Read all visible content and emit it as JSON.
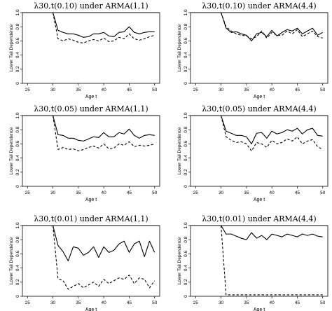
{
  "chart_data": [
    {
      "type": "line",
      "title": "λ30,t(0.10) under ARMA(1,1)",
      "xlabel": "Age t",
      "ylabel": "Lower Tail Dependence",
      "xlim": [
        24,
        51
      ],
      "ylim": [
        0,
        1
      ],
      "xticks": [
        "25",
        "30",
        "35",
        "40",
        "45",
        "50"
      ],
      "yticks": [
        "0",
        "0.2",
        "0.4",
        "0.6",
        "0.8",
        "1.0"
      ],
      "grid": false,
      "legend": "none",
      "reference_line": 1.0,
      "x": [
        30,
        31,
        32,
        33,
        34,
        35,
        36,
        37,
        38,
        39,
        40,
        41,
        42,
        43,
        44,
        45,
        46,
        47,
        48,
        49,
        50
      ],
      "series": [
        {
          "style": "solid",
          "values": [
            1.0,
            0.75,
            0.72,
            0.7,
            0.7,
            0.68,
            0.65,
            0.66,
            0.7,
            0.7,
            0.72,
            0.67,
            0.66,
            0.72,
            0.73,
            0.8,
            0.72,
            0.7,
            0.72,
            0.73,
            0.73
          ]
        },
        {
          "style": "dashed",
          "values": [
            1.0,
            0.63,
            0.6,
            0.63,
            0.61,
            0.58,
            0.57,
            0.6,
            0.62,
            0.6,
            0.64,
            0.59,
            0.6,
            0.65,
            0.63,
            0.7,
            0.63,
            0.61,
            0.63,
            0.66,
            0.68
          ]
        }
      ]
    },
    {
      "type": "line",
      "title": "λ30,t(0.10) under ARMA(4,4)",
      "xlabel": "Age t",
      "ylabel": "Lower Tail Dependence",
      "xlim": [
        24,
        51
      ],
      "ylim": [
        0,
        1
      ],
      "xticks": [
        "25",
        "30",
        "35",
        "40",
        "45",
        "50"
      ],
      "yticks": [
        "0",
        "0.2",
        "0.4",
        "0.6",
        "0.8",
        "1.0"
      ],
      "grid": false,
      "legend": "none",
      "reference_line": 1.0,
      "x": [
        30,
        31,
        32,
        33,
        34,
        35,
        36,
        37,
        38,
        39,
        40,
        41,
        42,
        43,
        44,
        45,
        46,
        47,
        48,
        49,
        50
      ],
      "series": [
        {
          "style": "solid",
          "values": [
            1.0,
            0.78,
            0.72,
            0.73,
            0.7,
            0.68,
            0.6,
            0.7,
            0.72,
            0.66,
            0.75,
            0.67,
            0.72,
            0.76,
            0.74,
            0.78,
            0.7,
            0.74,
            0.78,
            0.68,
            0.72
          ]
        },
        {
          "style": "dashed",
          "values": [
            1.0,
            0.8,
            0.74,
            0.7,
            0.68,
            0.67,
            0.63,
            0.66,
            0.74,
            0.64,
            0.72,
            0.68,
            0.68,
            0.74,
            0.7,
            0.76,
            0.66,
            0.7,
            0.74,
            0.66,
            0.64
          ]
        }
      ]
    },
    {
      "type": "line",
      "title": "λ30,t(0.05) under ARMA(1,1)",
      "xlabel": "Age t",
      "ylabel": "Lower Tail Dependence",
      "xlim": [
        24,
        51
      ],
      "ylim": [
        0,
        1
      ],
      "xticks": [
        "25",
        "30",
        "35",
        "40",
        "45",
        "50"
      ],
      "yticks": [
        "0",
        "0.2",
        "0.4",
        "0.6",
        "0.8",
        "1.0"
      ],
      "grid": false,
      "legend": "none",
      "reference_line": 1.0,
      "x": [
        30,
        31,
        32,
        33,
        34,
        35,
        36,
        37,
        38,
        39,
        40,
        41,
        42,
        43,
        44,
        45,
        46,
        47,
        48,
        49,
        50
      ],
      "series": [
        {
          "style": "solid",
          "values": [
            1.0,
            0.73,
            0.72,
            0.68,
            0.68,
            0.65,
            0.64,
            0.67,
            0.7,
            0.69,
            0.76,
            0.7,
            0.7,
            0.76,
            0.74,
            0.81,
            0.72,
            0.68,
            0.72,
            0.73,
            0.72
          ]
        },
        {
          "style": "dashed",
          "values": [
            1.0,
            0.52,
            0.55,
            0.52,
            0.53,
            0.5,
            0.52,
            0.55,
            0.57,
            0.54,
            0.6,
            0.53,
            0.54,
            0.6,
            0.58,
            0.63,
            0.56,
            0.58,
            0.57,
            0.58,
            0.6
          ]
        }
      ]
    },
    {
      "type": "line",
      "title": "λ30,t(0.05) under ARMA(4,4)",
      "xlabel": "Age t",
      "ylabel": "Lower Tail Dependence",
      "xlim": [
        24,
        51
      ],
      "ylim": [
        0,
        1
      ],
      "xticks": [
        "25",
        "30",
        "35",
        "40",
        "45",
        "50"
      ],
      "yticks": [
        "0",
        "0.2",
        "0.4",
        "0.6",
        "0.8",
        "1.0"
      ],
      "grid": false,
      "legend": "none",
      "reference_line": 1.0,
      "x": [
        30,
        31,
        32,
        33,
        34,
        35,
        36,
        37,
        38,
        39,
        40,
        41,
        42,
        43,
        44,
        45,
        46,
        47,
        48,
        49,
        50
      ],
      "series": [
        {
          "style": "solid",
          "values": [
            1.0,
            0.78,
            0.75,
            0.72,
            0.72,
            0.7,
            0.6,
            0.75,
            0.76,
            0.68,
            0.78,
            0.74,
            0.76,
            0.8,
            0.78,
            0.82,
            0.74,
            0.8,
            0.82,
            0.72,
            0.71
          ]
        },
        {
          "style": "dashed",
          "values": [
            1.0,
            0.7,
            0.65,
            0.62,
            0.63,
            0.6,
            0.5,
            0.62,
            0.6,
            0.55,
            0.65,
            0.6,
            0.62,
            0.67,
            0.64,
            0.7,
            0.6,
            0.64,
            0.66,
            0.56,
            0.52
          ]
        }
      ]
    },
    {
      "type": "line",
      "title": "λ30,t(0.01) under ARMA(1,1)",
      "xlabel": "Age t",
      "ylabel": "Lower Tail Dependence",
      "xlim": [
        24,
        51
      ],
      "ylim": [
        0,
        1
      ],
      "xticks": [
        "25",
        "30",
        "35",
        "40",
        "45",
        "50"
      ],
      "yticks": [
        "0",
        "0.2",
        "0.4",
        "0.6",
        "0.8",
        "1.0"
      ],
      "grid": false,
      "legend": "none",
      "reference_line": 1.0,
      "x": [
        30,
        31,
        32,
        33,
        34,
        35,
        36,
        37,
        38,
        39,
        40,
        41,
        42,
        43,
        44,
        45,
        46,
        47,
        48,
        49,
        50
      ],
      "series": [
        {
          "style": "solid",
          "values": [
            1.0,
            0.72,
            0.63,
            0.5,
            0.7,
            0.68,
            0.58,
            0.62,
            0.7,
            0.55,
            0.7,
            0.62,
            0.65,
            0.74,
            0.78,
            0.62,
            0.74,
            0.78,
            0.56,
            0.78,
            0.62
          ]
        },
        {
          "style": "dashed",
          "values": [
            1.0,
            0.25,
            0.22,
            0.1,
            0.14,
            0.18,
            0.12,
            0.16,
            0.2,
            0.14,
            0.24,
            0.18,
            0.22,
            0.26,
            0.24,
            0.3,
            0.18,
            0.26,
            0.24,
            0.12,
            0.22
          ]
        }
      ]
    },
    {
      "type": "line",
      "title": "λ30,t(0.01) under ARMA(4,4)",
      "xlabel": "Age t",
      "ylabel": "Lower Tail Dependence",
      "xlim": [
        24,
        51
      ],
      "ylim": [
        0,
        1
      ],
      "xticks": [
        "25",
        "30",
        "35",
        "40",
        "45",
        "50"
      ],
      "yticks": [
        "0",
        "0.2",
        "0.4",
        "0.6",
        "0.8",
        "1.0"
      ],
      "grid": false,
      "legend": "none",
      "reference_line": 1.0,
      "x": [
        30,
        31,
        32,
        33,
        34,
        35,
        36,
        37,
        38,
        39,
        40,
        41,
        42,
        43,
        44,
        45,
        46,
        47,
        48,
        49,
        50
      ],
      "series": [
        {
          "style": "solid",
          "values": [
            1.0,
            0.88,
            0.88,
            0.85,
            0.82,
            0.8,
            0.9,
            0.82,
            0.86,
            0.8,
            0.88,
            0.86,
            0.84,
            0.88,
            0.86,
            0.84,
            0.88,
            0.86,
            0.88,
            0.85,
            0.84
          ]
        },
        {
          "style": "dashed",
          "values": [
            1.0,
            0.02,
            0.02,
            0.02,
            0.02,
            0.02,
            0.02,
            0.02,
            0.02,
            0.02,
            0.02,
            0.02,
            0.02,
            0.02,
            0.02,
            0.02,
            0.02,
            0.02,
            0.02,
            0.02,
            0.02
          ]
        }
      ]
    }
  ]
}
